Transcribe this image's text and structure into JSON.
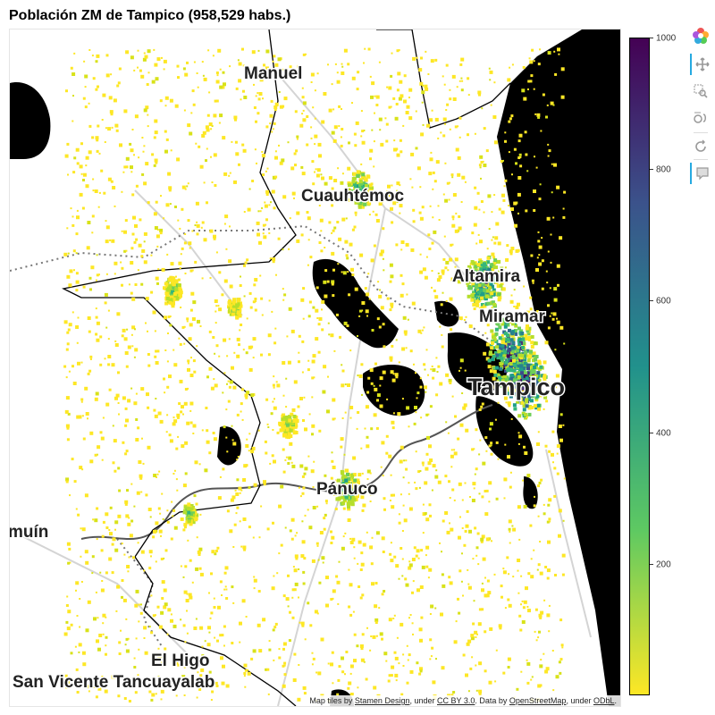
{
  "title": "Población ZM de Tampico (958,529 habs.)",
  "map": {
    "place_labels": [
      "Manuel",
      "Cuauhtémoc",
      "Altamira",
      "Miramar",
      "Tampico",
      "Pánuco",
      "El Higo",
      "San Vicente Tancuayalab",
      "muín"
    ],
    "attribution": {
      "prefix": "Map tiles by ",
      "stamen": "Stamen Design",
      "under1": ", under ",
      "ccby": "CC BY 3.0",
      "data_by": ". Data by ",
      "osm": "OpenStreetMap",
      "under2": ", under ",
      "odbl": "ODbL",
      "suffix": "."
    }
  },
  "colorbar": {
    "min": 0,
    "max": 1000,
    "ticks": [
      "1000",
      "800",
      "600",
      "400",
      "200"
    ],
    "tick_values": [
      1000,
      800,
      600,
      400,
      200
    ],
    "palette": "viridis-reversed",
    "colors": {
      "high": "#440154",
      "mid_high": "#3b528b",
      "mid": "#21918c",
      "mid_low": "#5ec962",
      "low": "#fde725"
    }
  },
  "toolbar": {
    "tools": [
      "bokeh-logo-icon",
      "pan-icon",
      "box-zoom-icon",
      "wheel-zoom-icon",
      "reset-icon",
      "hover-icon"
    ]
  }
}
